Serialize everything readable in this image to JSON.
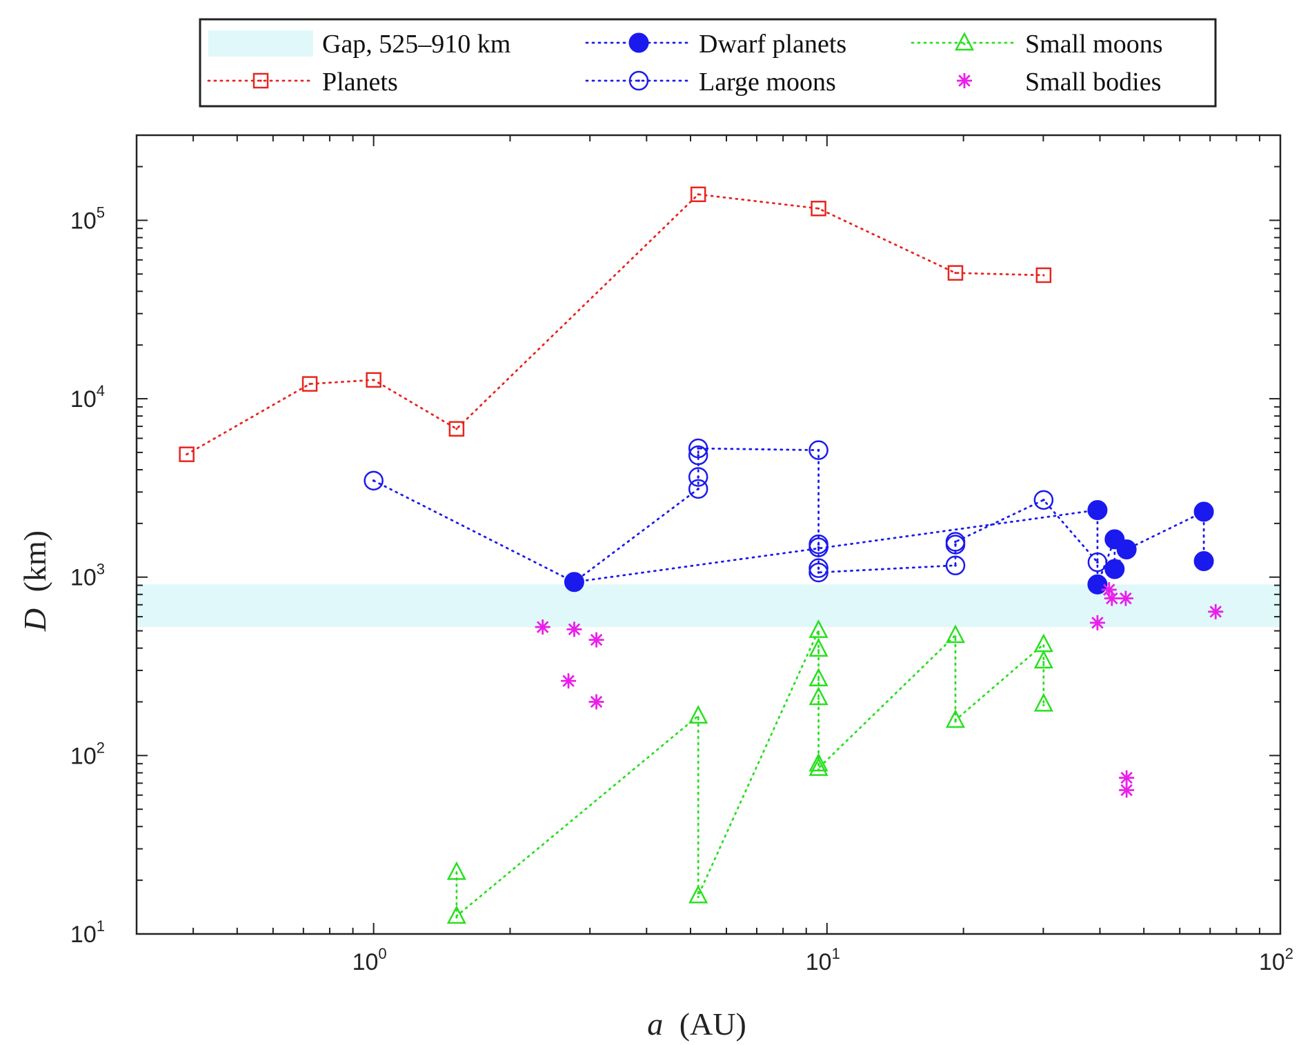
{
  "chart_data": {
    "type": "scatter",
    "x_scale": "log",
    "y_scale": "log",
    "xlim": [
      0.3,
      100
    ],
    "ylim": [
      10,
      300000
    ],
    "x_ticks": [
      {
        "value": 1,
        "base": "10",
        "exp": "0"
      },
      {
        "value": 10,
        "base": "10",
        "exp": "1"
      },
      {
        "value": 100,
        "base": "10",
        "exp": "2"
      }
    ],
    "y_ticks": [
      {
        "value": 10,
        "base": "10",
        "exp": "1"
      },
      {
        "value": 100,
        "base": "10",
        "exp": "2"
      },
      {
        "value": 1000,
        "base": "10",
        "exp": "3"
      },
      {
        "value": 10000,
        "base": "10",
        "exp": "4"
      },
      {
        "value": 100000,
        "base": "10",
        "exp": "5"
      }
    ],
    "xlabel": {
      "var": "a",
      "unit": "(AU)"
    },
    "ylabel": {
      "var": "D",
      "unit": "(km)"
    },
    "grid": false,
    "legend_placement": "top-outside",
    "gap_band": {
      "name": "Gap, 525–910 km",
      "y_range": [
        525,
        910
      ],
      "color": "#e0f8fa"
    },
    "series": [
      {
        "name": "Planets",
        "color": "#e8241e",
        "marker": "square",
        "line": "dotted",
        "points": [
          [
            0.387,
            4879
          ],
          [
            0.723,
            12104
          ],
          [
            1.0,
            12742
          ],
          [
            1.524,
            6779
          ],
          [
            5.2,
            139820
          ],
          [
            9.58,
            116460
          ],
          [
            19.2,
            50724
          ],
          [
            30.05,
            49244
          ]
        ]
      },
      {
        "name": "Large moons",
        "color": "#1a1aef",
        "marker": "circle-dot",
        "line": "dotted",
        "points": [
          [
            1.0,
            3474
          ],
          [
            2.77,
            939
          ],
          [
            5.2,
            3122
          ],
          [
            5.2,
            3643
          ],
          [
            5.2,
            4821
          ],
          [
            5.2,
            5268
          ],
          [
            9.58,
            5150
          ],
          [
            9.58,
            1528
          ],
          [
            9.58,
            1469
          ],
          [
            9.58,
            1123
          ],
          [
            9.58,
            1062
          ],
          [
            19.2,
            1163
          ],
          [
            19.2,
            1523
          ],
          [
            19.2,
            1578
          ],
          [
            30.05,
            2707
          ],
          [
            39.5,
            1212
          ]
        ]
      },
      {
        "name": "Dwarf planets",
        "color": "#1a1aef",
        "marker": "filled-circle",
        "line": "dotted",
        "points": [
          [
            2.77,
            939
          ],
          [
            39.5,
            2377
          ],
          [
            39.5,
            910
          ],
          [
            43.1,
            1630
          ],
          [
            43.1,
            1110
          ],
          [
            45.8,
            1430
          ],
          [
            67.8,
            2326
          ],
          [
            67.8,
            1230
          ]
        ]
      },
      {
        "name": "Small moons",
        "color": "#27e01e",
        "marker": "triangle",
        "line": "dotted",
        "points": [
          [
            1.524,
            22.2
          ],
          [
            1.524,
            12.6
          ],
          [
            5.2,
            167
          ],
          [
            5.2,
            16.4
          ],
          [
            9.58,
            504
          ],
          [
            9.58,
            396
          ],
          [
            9.58,
            270
          ],
          [
            9.58,
            212
          ],
          [
            9.58,
            90
          ],
          [
            9.58,
            85
          ],
          [
            19.2,
            472
          ],
          [
            19.2,
            158
          ],
          [
            30.05,
            420
          ],
          [
            30.05,
            340
          ],
          [
            30.05,
            195
          ]
        ]
      },
      {
        "name": "Small bodies",
        "color": "#ea1eea",
        "marker": "asterisk",
        "line": "none",
        "points": [
          [
            2.36,
            525
          ],
          [
            2.69,
            262
          ],
          [
            2.77,
            510
          ],
          [
            3.1,
            445
          ],
          [
            3.1,
            200
          ],
          [
            39.5,
            555
          ],
          [
            41.9,
            850
          ],
          [
            42.5,
            760
          ],
          [
            45.6,
            760
          ],
          [
            45.8,
            75
          ],
          [
            45.8,
            64
          ],
          [
            72.0,
            640
          ]
        ]
      }
    ]
  }
}
